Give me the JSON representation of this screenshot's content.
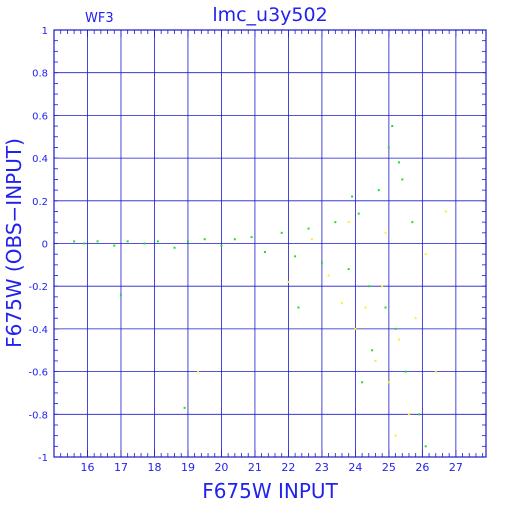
{
  "chart_data": {
    "type": "scatter",
    "title": "lmc_u3y502",
    "subtitle": "WF3",
    "xlabel": "F675W INPUT",
    "ylabel": "F675W (OBS−INPUT)",
    "xlim": [
      15.0,
      27.9
    ],
    "ylim": [
      -1.0,
      1.0
    ],
    "xticks": [
      16,
      17,
      18,
      19,
      20,
      21,
      22,
      23,
      24,
      25,
      26,
      27
    ],
    "yticks": [
      "-1",
      "-0.8",
      "-0.6",
      "-0.4",
      "-0.2",
      "0",
      "0.2",
      "0.4",
      "0.6",
      "0.8",
      "1"
    ],
    "grid": true,
    "colors": {
      "axis": "#1a1acc",
      "text": "#2222ee",
      "primary": "#22dd22",
      "secondary": "#ffee22"
    },
    "series": [
      {
        "color": "#22dd22",
        "points": [
          [
            15.6,
            0.01
          ],
          [
            15.9,
            0.0
          ],
          [
            16.3,
            0.01
          ],
          [
            16.8,
            -0.01
          ],
          [
            17.2,
            0.01
          ],
          [
            17.7,
            0.0
          ],
          [
            18.1,
            0.01
          ],
          [
            18.6,
            -0.02
          ],
          [
            19.0,
            0.01
          ],
          [
            19.5,
            0.02
          ],
          [
            20.0,
            -0.01
          ],
          [
            20.4,
            0.02
          ],
          [
            20.9,
            0.03
          ],
          [
            21.3,
            -0.04
          ],
          [
            21.8,
            0.05
          ],
          [
            22.2,
            -0.06
          ],
          [
            22.6,
            0.07
          ],
          [
            23.0,
            -0.09
          ],
          [
            23.4,
            0.1
          ],
          [
            23.8,
            -0.12
          ],
          [
            24.1,
            0.14
          ],
          [
            24.4,
            -0.2
          ],
          [
            24.7,
            0.25
          ],
          [
            24.9,
            -0.3
          ],
          [
            25.0,
            0.45
          ],
          [
            25.1,
            0.55
          ],
          [
            25.2,
            -0.4
          ],
          [
            25.4,
            0.3
          ],
          [
            25.5,
            -0.6
          ],
          [
            25.7,
            0.1
          ],
          [
            25.9,
            -0.8
          ],
          [
            26.1,
            -0.95
          ],
          [
            24.5,
            -0.5
          ],
          [
            23.9,
            0.22
          ],
          [
            25.3,
            0.38
          ],
          [
            18.9,
            -0.77
          ],
          [
            22.3,
            -0.3
          ],
          [
            17.0,
            -0.24
          ],
          [
            24.2,
            -0.65
          ]
        ]
      },
      {
        "color": "#ffee22",
        "points": [
          [
            22.7,
            0.02
          ],
          [
            23.2,
            -0.15
          ],
          [
            23.6,
            -0.28
          ],
          [
            24.0,
            -0.4
          ],
          [
            24.3,
            -0.3
          ],
          [
            24.6,
            -0.55
          ],
          [
            24.8,
            -0.2
          ],
          [
            25.0,
            -0.65
          ],
          [
            25.3,
            -0.45
          ],
          [
            25.6,
            -0.8
          ],
          [
            25.8,
            -0.35
          ],
          [
            26.4,
            -0.6
          ],
          [
            26.7,
            0.15
          ],
          [
            23.8,
            0.1
          ],
          [
            24.9,
            0.05
          ],
          [
            25.2,
            -0.9
          ],
          [
            22.0,
            -0.18
          ],
          [
            19.3,
            -0.6
          ],
          [
            26.1,
            -0.05
          ]
        ]
      }
    ]
  }
}
